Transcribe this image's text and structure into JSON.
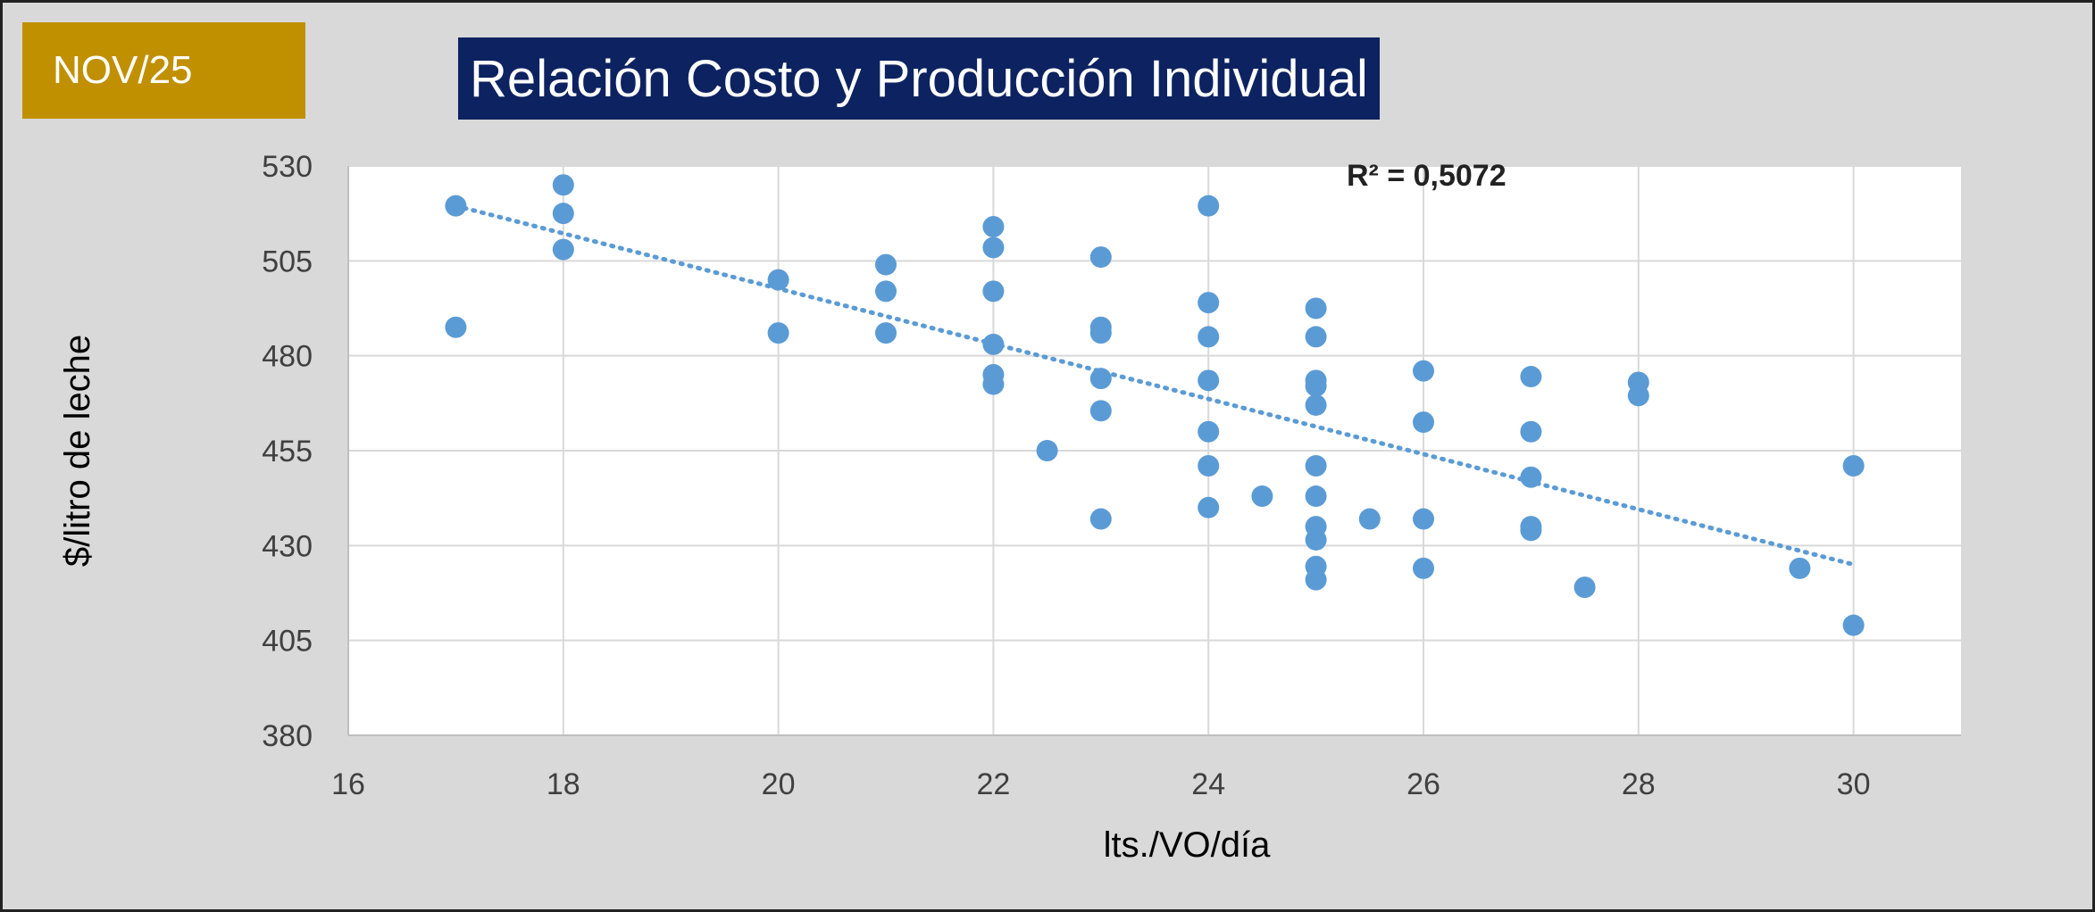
{
  "badge": {
    "text": "NOV/25"
  },
  "header": {
    "title": "Relación Costo y Producción Individual"
  },
  "colors": {
    "badge_bg": "#c09000",
    "title_bg": "#0d2260",
    "point": "#5b9bd5",
    "trendline": "#5b9bd5",
    "panel_bg": "#d9d9d9"
  },
  "chart_data": {
    "type": "scatter",
    "title": "Relación Costo y Producción Individual",
    "xlabel": "lts./VO/día",
    "ylabel": "$/litro de leche",
    "xlim": [
      16,
      31
    ],
    "ylim": [
      380,
      530
    ],
    "xticks": [
      16,
      18,
      20,
      22,
      24,
      26,
      28,
      30
    ],
    "yticks": [
      380,
      405,
      430,
      455,
      480,
      505,
      530
    ],
    "grid": true,
    "legend": "none",
    "annotation": "R² = 0,5072",
    "trendline": {
      "type": "linear",
      "style": "dotted",
      "x": [
        17,
        30
      ],
      "y": [
        519.5,
        425
      ]
    },
    "points": [
      [
        17,
        519.5
      ],
      [
        17,
        487.5
      ],
      [
        18,
        525
      ],
      [
        18,
        517.5
      ],
      [
        18,
        508
      ],
      [
        20,
        500
      ],
      [
        20,
        486
      ],
      [
        21,
        504
      ],
      [
        21,
        497
      ],
      [
        21,
        486
      ],
      [
        22,
        514
      ],
      [
        22,
        508.5
      ],
      [
        22,
        497
      ],
      [
        22,
        483
      ],
      [
        22,
        475
      ],
      [
        22,
        472.5
      ],
      [
        22.5,
        455
      ],
      [
        23,
        506
      ],
      [
        23,
        487.5
      ],
      [
        23,
        486
      ],
      [
        23,
        474
      ],
      [
        23,
        465.5
      ],
      [
        23,
        437
      ],
      [
        24,
        519.5
      ],
      [
        24,
        494
      ],
      [
        24,
        485
      ],
      [
        24,
        473.5
      ],
      [
        24,
        460
      ],
      [
        24,
        451
      ],
      [
        24,
        440
      ],
      [
        24.5,
        443
      ],
      [
        25,
        492.5
      ],
      [
        25,
        485
      ],
      [
        25,
        473.5
      ],
      [
        25,
        472
      ],
      [
        25,
        467
      ],
      [
        25,
        451
      ],
      [
        25,
        443
      ],
      [
        25,
        435
      ],
      [
        25,
        431.5
      ],
      [
        25,
        424.5
      ],
      [
        25,
        421
      ],
      [
        25.5,
        437
      ],
      [
        26,
        476
      ],
      [
        26,
        462.5
      ],
      [
        26,
        437
      ],
      [
        26,
        424
      ],
      [
        27,
        474.5
      ],
      [
        27,
        460
      ],
      [
        27,
        448
      ],
      [
        27,
        435
      ],
      [
        27,
        434
      ],
      [
        27.5,
        419
      ],
      [
        28,
        473
      ],
      [
        28,
        469.5
      ],
      [
        29.5,
        424
      ],
      [
        30,
        451
      ],
      [
        30,
        409
      ]
    ]
  }
}
